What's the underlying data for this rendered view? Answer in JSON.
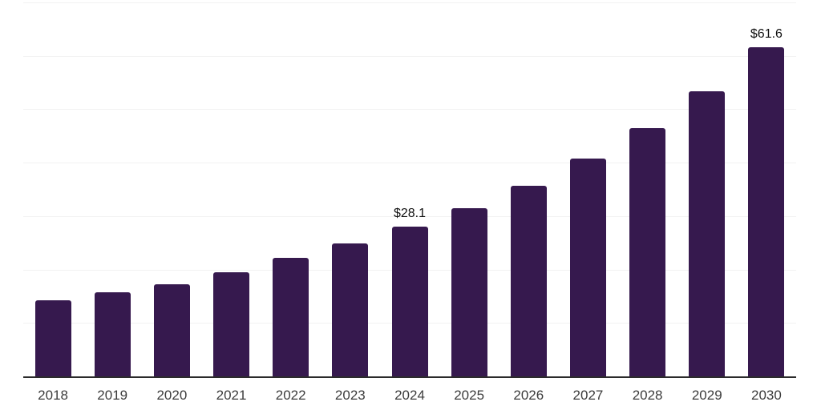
{
  "chart_data": {
    "type": "bar",
    "title": "",
    "xlabel": "",
    "ylabel": "",
    "categories": [
      "2018",
      "2019",
      "2020",
      "2021",
      "2022",
      "2023",
      "2024",
      "2025",
      "2026",
      "2027",
      "2028",
      "2029",
      "2030"
    ],
    "values": [
      14.3,
      15.7,
      17.2,
      19.5,
      22.2,
      24.9,
      28.1,
      31.5,
      35.7,
      40.7,
      46.5,
      53.4,
      61.6
    ],
    "annotations": [
      {
        "category": "2024",
        "text": "$28.1"
      },
      {
        "category": "2030",
        "text": "$61.6"
      }
    ],
    "ylim": [
      0,
      70
    ],
    "grid": true,
    "gridline_values": [
      10,
      20,
      30,
      40,
      50,
      60,
      70
    ],
    "legend": "none",
    "colors": {
      "bar": "#36194e",
      "gridline": "#f2f2f2",
      "axis_line": "#2b2b2b",
      "tick_label": "#3c3c3c",
      "data_label": "#111111",
      "background": "#ffffff"
    }
  }
}
